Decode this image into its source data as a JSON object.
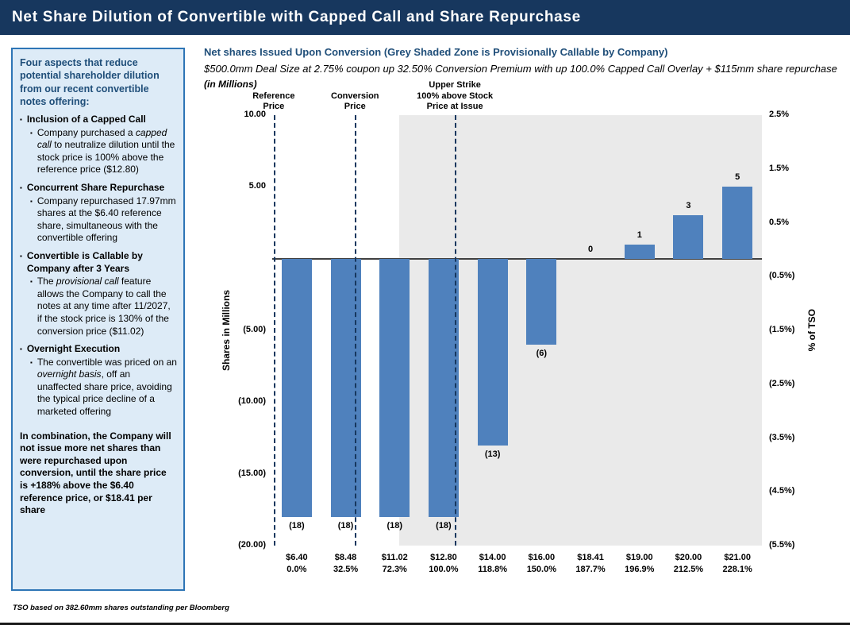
{
  "header": {
    "title": "Net Share Dilution of Convertible with Capped Call and Share Repurchase"
  },
  "sidebar": {
    "bullet_glyph": "▪",
    "heading": "Four aspects that reduce potential shareholder dilution from our recent convertible notes offering:",
    "items": [
      {
        "title": "Inclusion of a Capped Call",
        "body_pre": "Company purchased a ",
        "body_em": "capped call",
        "body_post": " to neutralize dilution until the stock price is 100% above the reference price ($12.80)"
      },
      {
        "title": "Concurrent Share Repurchase",
        "body_pre": "Company repurchased 17.97mm shares at the $6.40 reference share, simultaneous with the convertible offering",
        "body_em": "",
        "body_post": ""
      },
      {
        "title": "Convertible is Callable by Company after 3 Years",
        "body_pre": "The ",
        "body_em": "provisional call",
        "body_post": " feature allows the Company to call the notes at any time after 11/2027, if the stock price is 130% of the conversion price ($11.02)"
      },
      {
        "title": "Overnight Execution",
        "body_pre": "The convertible was priced on an ",
        "body_em": "overnight basis",
        "body_post": ", off an unaffected share price, avoiding the typical price decline of a marketed offering"
      }
    ],
    "conclusion": "In combination, the Company will not issue more net shares than were repurchased upon conversion, until the share price is +188% above the $6.40 reference price, or $18.41 per share"
  },
  "footnote": "TSO based on 382.60mm shares outstanding per Bloomberg",
  "chart_data": {
    "type": "bar",
    "title": "Net shares Issued Upon Conversion (Grey Shaded Zone is Provisionally Callable by Company)",
    "subtitle": "$500.0mm Deal Size at 2.75% coupon up 32.50% Conversion Premium with up 100.0% Capped Call Overlay + $115mm share repurchase",
    "units_note": "(in Millions)",
    "ylabel_left": "Shares in Millions",
    "ylabel_right": "% of TSO",
    "bar_color": "#4F81BD",
    "callable_zone_color": "#EAEAEA",
    "ylim": [
      -20,
      10
    ],
    "categories": [
      {
        "price": "$6.40",
        "pct": "0.0%",
        "value": -18,
        "label": "(18)"
      },
      {
        "price": "$8.48",
        "pct": "32.5%",
        "value": -18,
        "label": "(18)"
      },
      {
        "price": "$11.02",
        "pct": "72.3%",
        "value": -18,
        "label": "(18)"
      },
      {
        "price": "$12.80",
        "pct": "100.0%",
        "value": -18,
        "label": "(18)"
      },
      {
        "price": "$14.00",
        "pct": "118.8%",
        "value": -13,
        "label": "(13)"
      },
      {
        "price": "$16.00",
        "pct": "150.0%",
        "value": -6,
        "label": "(6)"
      },
      {
        "price": "$18.41",
        "pct": "187.7%",
        "value": 0,
        "label": "0"
      },
      {
        "price": "$19.00",
        "pct": "196.9%",
        "value": 1,
        "label": "1"
      },
      {
        "price": "$20.00",
        "pct": "212.5%",
        "value": 3,
        "label": "3"
      },
      {
        "price": "$21.00",
        "pct": "228.1%",
        "value": 5,
        "label": "5"
      }
    ],
    "yticks_left": [
      {
        "value": 10,
        "label": "10.00"
      },
      {
        "value": 5,
        "label": "5.00"
      },
      {
        "value": -5,
        "label": "(5.00)"
      },
      {
        "value": -10,
        "label": "(10.00)"
      },
      {
        "value": -15,
        "label": "(15.00)"
      },
      {
        "value": -20,
        "label": "(20.00)"
      }
    ],
    "yticks_right": [
      "2.5%",
      "1.5%",
      "0.5%",
      "(0.5%)",
      "(1.5%)",
      "(2.5%)",
      "(3.5%)",
      "(4.5%)",
      "(5.5%)"
    ],
    "marker_lines": [
      {
        "lines": [
          "Reference",
          "Price"
        ],
        "x_frac": 0.003
      },
      {
        "lines": [
          "Conversion",
          "Price"
        ],
        "x_frac": 0.169
      },
      {
        "lines": [
          "Upper Strike",
          "100% above Stock",
          "Price at Issue"
        ],
        "x_frac": 0.373
      }
    ],
    "callable_zone_start_frac": 0.26,
    "legend": "off",
    "grid": "off"
  }
}
